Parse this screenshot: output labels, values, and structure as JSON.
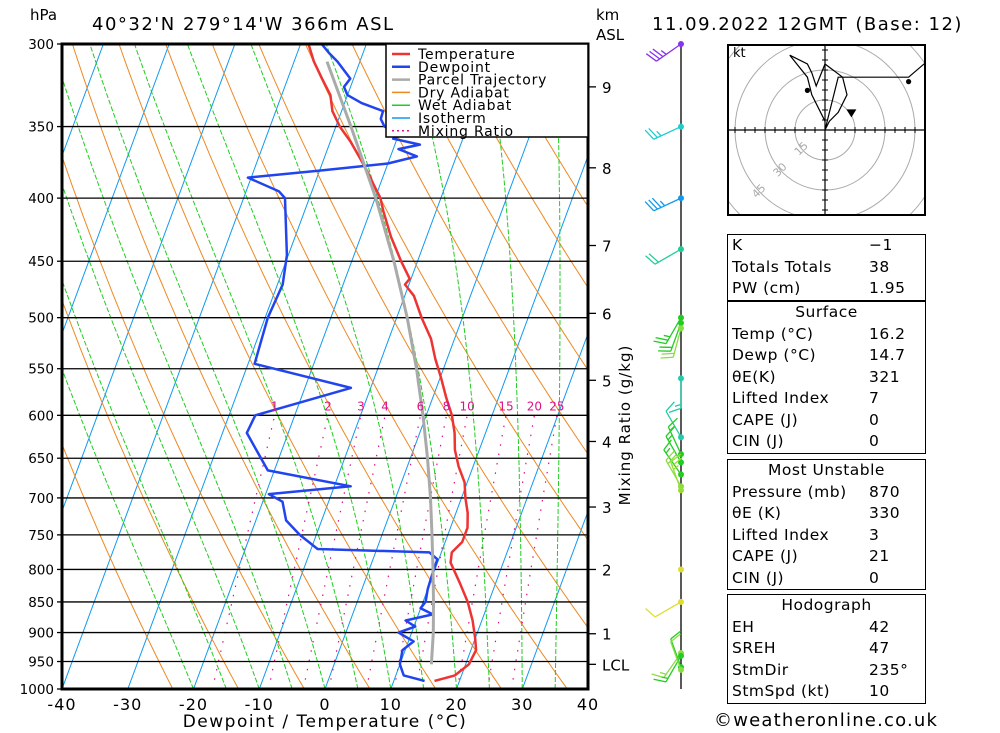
{
  "header": {
    "pressure_unit": "hPa",
    "location": "40°32'N  279°14'W  366m  ASL",
    "height_unit_line1": "km",
    "height_unit_line2": "ASL",
    "datetime": "11.09.2022 12GMT (Base: 12)"
  },
  "footer": {
    "copyright": "©weatheronline.co.uk"
  },
  "chart_data": {
    "type": "skew-t",
    "xlabel": "Dewpoint / Temperature (°C)",
    "ylabel_left": "hPa",
    "ylabel_right": "Mixing Ratio (g/kg)",
    "xlim": [
      -40,
      40
    ],
    "ylim_hpa": [
      1000,
      300
    ],
    "x_ticks": [
      -40,
      -30,
      -20,
      -10,
      0,
      10,
      20,
      30,
      40
    ],
    "pressure_levels": [
      300,
      350,
      400,
      450,
      500,
      550,
      600,
      650,
      700,
      750,
      800,
      850,
      900,
      950,
      1000
    ],
    "km_ticks": [
      {
        "label": "9",
        "p": 325
      },
      {
        "label": "8",
        "p": 378
      },
      {
        "label": "7",
        "p": 437
      },
      {
        "label": "6",
        "p": 496
      },
      {
        "label": "5",
        "p": 562
      },
      {
        "label": "4",
        "p": 630
      },
      {
        "label": "3",
        "p": 712
      },
      {
        "label": "2",
        "p": 800
      },
      {
        "label": "1",
        "p": 902
      },
      {
        "label": "LCL",
        "p": 955
      }
    ],
    "mixing_ratio_labels": [
      "1",
      "2",
      "3",
      "4",
      "6",
      "8",
      "10",
      "15",
      "20",
      "25"
    ],
    "mixing_ratio_values": [
      1,
      2,
      3,
      4,
      6,
      8,
      10,
      15,
      20,
      25
    ],
    "legend": [
      {
        "label": "Temperature",
        "color": "#ee3333"
      },
      {
        "label": "Dewpoint",
        "color": "#2244ee"
      },
      {
        "label": "Parcel Trajectory",
        "color": "#aaaaaa"
      },
      {
        "label": "Dry Adiabat",
        "color": "#ee8822"
      },
      {
        "label": "Wet Adiabat",
        "color": "#22cc22"
      },
      {
        "label": "Isotherm",
        "color": "#1199ee"
      },
      {
        "label": "Mixing Ratio",
        "color": "#dd1188"
      }
    ],
    "series": [
      {
        "name": "Temperature",
        "points": [
          [
            985,
            16.2
          ],
          [
            975,
            19.0
          ],
          [
            955,
            20.5
          ],
          [
            930,
            20.8
          ],
          [
            910,
            20.0
          ],
          [
            880,
            18.6
          ],
          [
            850,
            16.8
          ],
          [
            820,
            14.5
          ],
          [
            790,
            12.0
          ],
          [
            775,
            11.6
          ],
          [
            760,
            12.6
          ],
          [
            740,
            12.6
          ],
          [
            720,
            11.8
          ],
          [
            700,
            10.6
          ],
          [
            680,
            9.6
          ],
          [
            660,
            7.8
          ],
          [
            640,
            6.3
          ],
          [
            620,
            5.3
          ],
          [
            600,
            3.9
          ],
          [
            580,
            2.0
          ],
          [
            560,
            0.2
          ],
          [
            540,
            -1.8
          ],
          [
            520,
            -3.6
          ],
          [
            500,
            -6.2
          ],
          [
            480,
            -8.6
          ],
          [
            470,
            -10.6
          ],
          [
            465,
            -10.2
          ],
          [
            450,
            -12.5
          ],
          [
            430,
            -15.4
          ],
          [
            410,
            -18.0
          ],
          [
            400,
            -19.2
          ],
          [
            390,
            -21.0
          ],
          [
            380,
            -22.8
          ],
          [
            370,
            -24.8
          ],
          [
            360,
            -26.9
          ],
          [
            350,
            -29.4
          ],
          [
            340,
            -31.4
          ],
          [
            330,
            -32.6
          ],
          [
            320,
            -34.8
          ],
          [
            310,
            -37.0
          ],
          [
            300,
            -38.8
          ]
        ]
      },
      {
        "name": "Dewpoint",
        "points": [
          [
            985,
            14.7
          ],
          [
            975,
            11.2
          ],
          [
            955,
            10.0
          ],
          [
            930,
            9.6
          ],
          [
            915,
            10.8
          ],
          [
            900,
            8.0
          ],
          [
            890,
            10.2
          ],
          [
            880,
            8.4
          ],
          [
            870,
            12.2
          ],
          [
            860,
            10.0
          ],
          [
            850,
            10.4
          ],
          [
            830,
            10.0
          ],
          [
            800,
            9.8
          ],
          [
            785,
            9.8
          ],
          [
            775,
            8.2
          ],
          [
            770,
            -9.0
          ],
          [
            750,
            -12.5
          ],
          [
            730,
            -15.4
          ],
          [
            705,
            -17.0
          ],
          [
            695,
            -19.5
          ],
          [
            685,
            -7.5
          ],
          [
            665,
            -21.0
          ],
          [
            620,
            -26.3
          ],
          [
            600,
            -26.0
          ],
          [
            570,
            -13.0
          ],
          [
            545,
            -29.0
          ],
          [
            500,
            -29.6
          ],
          [
            470,
            -29.2
          ],
          [
            445,
            -30.2
          ],
          [
            400,
            -33.7
          ],
          [
            395,
            -35.0
          ],
          [
            385,
            -40.5
          ],
          [
            380,
            -30.0
          ],
          [
            375,
            -20.0
          ],
          [
            370,
            -16.0
          ],
          [
            365,
            -19.2
          ],
          [
            362,
            -16.2
          ],
          [
            358,
            -20.6
          ],
          [
            355,
            -19.6
          ],
          [
            350,
            -22.6
          ],
          [
            345,
            -23.6
          ],
          [
            340,
            -23.7
          ],
          [
            335,
            -27.4
          ],
          [
            330,
            -30.0
          ],
          [
            325,
            -31.0
          ],
          [
            320,
            -30.5
          ],
          [
            310,
            -33.4
          ],
          [
            305,
            -35.2
          ],
          [
            300,
            -36.8
          ]
        ]
      },
      {
        "name": "Parcel Trajectory",
        "points": [
          [
            955,
            14.8
          ],
          [
            900,
            13.3
          ],
          [
            850,
            11.6
          ],
          [
            800,
            9.7
          ],
          [
            750,
            7.6
          ],
          [
            700,
            5.3
          ],
          [
            650,
            2.6
          ],
          [
            600,
            -0.5
          ],
          [
            550,
            -4.1
          ],
          [
            500,
            -8.4
          ],
          [
            450,
            -13.6
          ],
          [
            400,
            -19.9
          ],
          [
            350,
            -27.7
          ],
          [
            310,
            -35.0
          ]
        ]
      }
    ],
    "wind_barbs": [
      {
        "p": 300,
        "color": "#8833ee",
        "dir": 235,
        "spd": 35
      },
      {
        "p": 350,
        "color": "#22cccc",
        "dir": 245,
        "spd": 25
      },
      {
        "p": 400,
        "color": "#1199ee",
        "dir": 245,
        "spd": 35
      },
      {
        "p": 440,
        "color": "#22cc99",
        "dir": 240,
        "spd": 20
      },
      {
        "p": 500,
        "color": "#22cc22",
        "dir": 210,
        "spd": 25
      },
      {
        "p": 505,
        "color": "#22cc22",
        "dir": 200,
        "spd": 20
      },
      {
        "p": 510,
        "color": "#88dd44",
        "dir": 195,
        "spd": 20
      },
      {
        "p": 560,
        "color": "#22ccaa",
        "dir": 180,
        "spd": 15
      },
      {
        "p": 625,
        "color": "#22ccaa",
        "dir": 330,
        "spd": 10
      },
      {
        "p": 645,
        "color": "#22cc22",
        "dir": 335,
        "spd": 15
      },
      {
        "p": 655,
        "color": "#22cc22",
        "dir": 330,
        "spd": 15
      },
      {
        "p": 670,
        "color": "#22cc22",
        "dir": 325,
        "spd": 15
      },
      {
        "p": 685,
        "color": "#88dd44",
        "dir": 330,
        "spd": 20
      },
      {
        "p": 690,
        "color": "#99dd33",
        "dir": 340,
        "spd": 25
      },
      {
        "p": 800,
        "color": "#dddd33",
        "dir": 0,
        "spd": 0
      },
      {
        "p": 850,
        "color": "#dddd33",
        "dir": 240,
        "spd": 10
      },
      {
        "p": 935,
        "color": "#88dd44",
        "dir": 215,
        "spd": 15
      },
      {
        "p": 940,
        "color": "#22cc22",
        "dir": 210,
        "spd": 15
      },
      {
        "p": 960,
        "color": "#22cc22",
        "dir": 340,
        "spd": 10
      },
      {
        "p": 965,
        "color": "#88dd44",
        "dir": 340,
        "spd": 10
      }
    ],
    "hodograph": {
      "unit": "kt",
      "ring_labels": [
        "15",
        "30",
        "45"
      ],
      "ring_values": [
        15,
        30,
        45
      ],
      "trace_uv": [
        [
          0,
          2
        ],
        [
          -3,
          8
        ],
        [
          -4,
          12
        ],
        [
          -8,
          17
        ],
        [
          -4,
          15
        ],
        [
          -3,
          13
        ],
        [
          -2,
          10
        ],
        [
          0,
          15
        ],
        [
          4,
          12
        ],
        [
          5,
          8
        ],
        [
          3,
          4
        ],
        [
          1,
          2
        ],
        [
          0,
          0
        ],
        [
          3,
          12
        ],
        [
          19,
          12
        ],
        [
          26,
          18
        ]
      ],
      "storm_motion_uv": [
        6,
        4
      ],
      "markers_uv": [
        [
          -4,
          9
        ],
        [
          19,
          11
        ]
      ]
    }
  },
  "indices": {
    "general": [
      {
        "label": "K",
        "value": "−1"
      },
      {
        "label": "Totals Totals",
        "value": "38"
      },
      {
        "label": "PW (cm)",
        "value": "1.95"
      }
    ],
    "surface": {
      "title": "Surface",
      "rows": [
        {
          "label": "Temp (°C)",
          "value": "16.2"
        },
        {
          "label": "Dewp (°C)",
          "value": "14.7"
        },
        {
          "label": "θE(K)",
          "value": "321"
        },
        {
          "label": "Lifted Index",
          "value": "7"
        },
        {
          "label": "CAPE (J)",
          "value": "0"
        },
        {
          "label": "CIN (J)",
          "value": "0"
        }
      ]
    },
    "most_unstable": {
      "title": "Most Unstable",
      "rows": [
        {
          "label": "Pressure (mb)",
          "value": "870"
        },
        {
          "label": "θE (K)",
          "value": "330"
        },
        {
          "label": "Lifted Index",
          "value": "3"
        },
        {
          "label": "CAPE (J)",
          "value": "21"
        },
        {
          "label": "CIN (J)",
          "value": "0"
        }
      ]
    },
    "hodograph": {
      "title": "Hodograph",
      "rows": [
        {
          "label": "EH",
          "value": "42"
        },
        {
          "label": "SREH",
          "value": "47"
        },
        {
          "label": "StmDir",
          "value": "235°"
        },
        {
          "label": "StmSpd (kt)",
          "value": "10"
        }
      ]
    }
  }
}
